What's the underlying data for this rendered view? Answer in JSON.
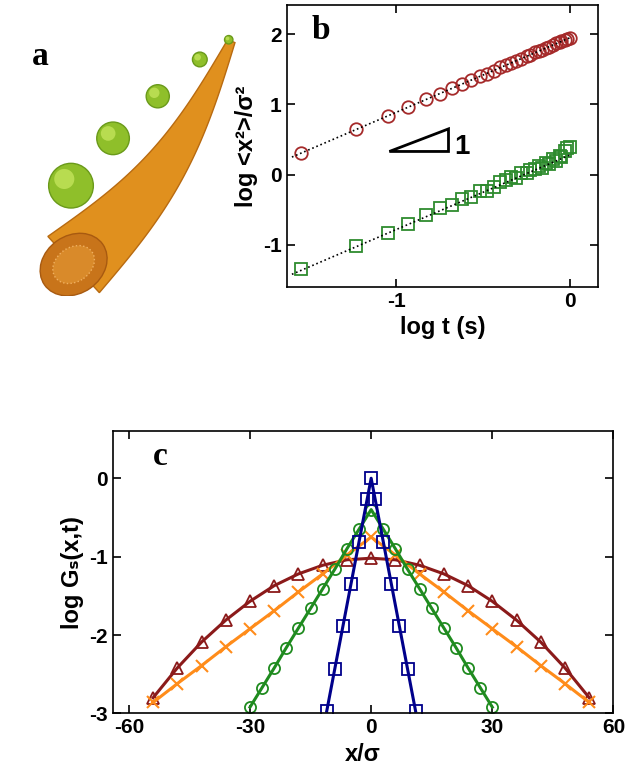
{
  "illustration": {
    "label": "a"
  },
  "chart_data": [
    {
      "type": "scatter",
      "title": "b",
      "xlabel": "log t (s)",
      "ylabel": "log <x²>/σ²",
      "xlim": [
        -1.63,
        0.16
      ],
      "xticks": [
        -1,
        0
      ],
      "ylim": [
        -1.6,
        2.42
      ],
      "yticks": [
        -1,
        0,
        1,
        2
      ],
      "annotations": [
        "1"
      ],
      "series": [
        {
          "type": "scatter",
          "color": "#a52a2a",
          "marker": "circle",
          "x": [
            -1.55,
            -1.23,
            -1.05,
            -0.93,
            -0.83,
            -0.75,
            -0.68,
            -0.62,
            -0.57,
            -0.52,
            -0.48,
            -0.44,
            -0.4,
            -0.37,
            -0.34,
            -0.31,
            -0.28,
            -0.25,
            -0.23,
            -0.2,
            -0.18,
            -0.16,
            -0.14,
            -0.12,
            -0.1,
            -0.08,
            -0.06,
            -0.05,
            -0.03,
            -0.02,
            0.0
          ],
          "values": [
            0.31,
            0.65,
            0.84,
            0.96,
            1.07,
            1.15,
            1.23,
            1.29,
            1.35,
            1.4,
            1.44,
            1.48,
            1.53,
            1.56,
            1.59,
            1.62,
            1.65,
            1.69,
            1.71,
            1.74,
            1.76,
            1.78,
            1.8,
            1.82,
            1.84,
            1.87,
            1.89,
            1.9,
            1.92,
            1.93,
            1.95
          ]
        },
        {
          "type": "scatter",
          "color": "#2e8b2e",
          "marker": "square",
          "x": [
            -1.55,
            -1.23,
            -1.05,
            -0.93,
            -0.83,
            -0.75,
            -0.68,
            -0.62,
            -0.57,
            -0.52,
            -0.48,
            -0.44,
            -0.4,
            -0.37,
            -0.34,
            -0.31,
            -0.28,
            -0.25,
            -0.23,
            -0.2,
            -0.18,
            -0.16,
            -0.14,
            -0.12,
            -0.1,
            -0.08,
            -0.06,
            -0.05,
            -0.03,
            -0.02,
            0.0
          ],
          "values": [
            -1.34,
            -1.02,
            -0.83,
            -0.7,
            -0.58,
            -0.48,
            -0.43,
            -0.35,
            -0.32,
            -0.24,
            -0.23,
            -0.18,
            -0.1,
            -0.07,
            -0.04,
            -0.05,
            0.02,
            0.03,
            0.06,
            0.08,
            0.12,
            0.1,
            0.17,
            0.15,
            0.22,
            0.2,
            0.27,
            0.25,
            0.33,
            0.38,
            0.4
          ]
        },
        {
          "type": "line",
          "color": "#000000",
          "line_style": "dotted",
          "x": [
            -1.6,
            0.0
          ],
          "values": [
            0.25,
            1.95
          ]
        },
        {
          "type": "line",
          "color": "#000000",
          "line_style": "dotted",
          "x": [
            -1.6,
            0.0
          ],
          "values": [
            -1.42,
            0.28
          ]
        }
      ]
    },
    {
      "type": "line",
      "title": "c",
      "xlabel": "x/σ",
      "ylabel": "log Gₛ(x,t)",
      "xlim": [
        -64,
        60
      ],
      "xticks": [
        -60,
        -30,
        0,
        30,
        60
      ],
      "ylim": [
        -3,
        0.6
      ],
      "yticks": [
        -3,
        -2,
        -1,
        0
      ],
      "series": [
        {
          "color": "#8b1a1a",
          "marker": "triangle",
          "x": [
            -54,
            -48,
            -42,
            -36,
            -30,
            -24,
            -18,
            -12,
            -6,
            0,
            6,
            12,
            18,
            24,
            30,
            36,
            42,
            48,
            54
          ],
          "values": [
            -2.8,
            -2.42,
            -2.09,
            -1.81,
            -1.57,
            -1.37,
            -1.22,
            -1.11,
            -1.04,
            -1.02,
            -1.04,
            -1.11,
            -1.22,
            -1.37,
            -1.57,
            -1.81,
            -2.09,
            -2.42,
            -2.8
          ]
        },
        {
          "color": "#ff8c1a",
          "marker": "x",
          "x": [
            -54,
            -48,
            -42,
            -36,
            -30,
            -24,
            -18,
            -12,
            -6,
            0,
            6,
            12,
            18,
            24,
            30,
            36,
            42,
            48,
            54
          ],
          "values": [
            -2.86,
            -2.62,
            -2.39,
            -2.15,
            -1.92,
            -1.69,
            -1.45,
            -1.22,
            -0.98,
            -0.75,
            -0.98,
            -1.22,
            -1.45,
            -1.69,
            -1.92,
            -2.15,
            -2.39,
            -2.62,
            -2.86
          ]
        },
        {
          "color": "#1f8b1f",
          "marker": "circle",
          "x": [
            -30,
            -27,
            -24,
            -21,
            -18,
            -15,
            -12,
            -9,
            -6,
            -3,
            0,
            3,
            6,
            9,
            12,
            15,
            18,
            21,
            24,
            27,
            30
          ],
          "values": [
            -2.92,
            -2.67,
            -2.42,
            -2.16,
            -1.91,
            -1.66,
            -1.41,
            -1.16,
            -0.9,
            -0.65,
            -0.4,
            -0.65,
            -0.9,
            -1.16,
            -1.41,
            -1.66,
            -1.91,
            -2.16,
            -2.42,
            -2.67,
            -2.92
          ]
        },
        {
          "color": "#00008b",
          "marker": "square",
          "x": [
            -11,
            -9,
            -7,
            -5,
            -3,
            -1,
            0,
            1,
            3,
            5,
            7,
            9,
            11
          ],
          "values": [
            -2.97,
            -2.43,
            -1.89,
            -1.35,
            -0.81,
            -0.27,
            0.0,
            -0.27,
            -0.81,
            -1.35,
            -1.89,
            -2.43,
            -2.97
          ]
        }
      ]
    }
  ]
}
